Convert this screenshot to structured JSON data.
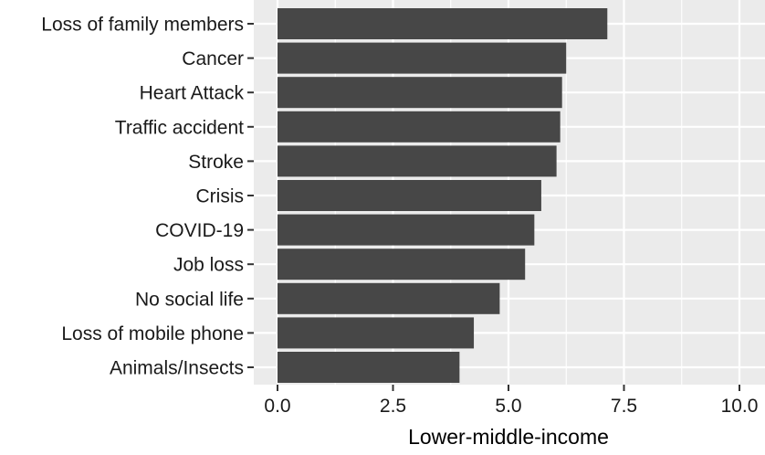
{
  "chart_data": {
    "type": "bar",
    "orientation": "horizontal",
    "title": "",
    "xlabel": "Lower-middle-income",
    "ylabel": "",
    "xlim": [
      0,
      10
    ],
    "x_ticks": [
      "0.0",
      "2.5",
      "5.0",
      "7.5",
      "10.0"
    ],
    "x_tick_values": [
      0,
      2.5,
      5,
      7.5,
      10
    ],
    "categories": [
      "Loss of family members",
      "Cancer",
      "Heart Attack",
      "Traffic accident",
      "Stroke",
      "Crisis",
      "COVID-19",
      "Job loss",
      "No social life",
      "Loss of mobile phone",
      "Animals/Insects"
    ],
    "values": [
      7.14,
      6.25,
      6.16,
      6.12,
      6.04,
      5.71,
      5.56,
      5.36,
      4.81,
      4.25,
      3.94
    ],
    "grid": true,
    "legend": "none",
    "colors": {
      "bar": "#474747",
      "panel": "#ebebeb",
      "grid": "#ffffff",
      "text": "#1a1a1a",
      "tick": "#333333"
    }
  }
}
